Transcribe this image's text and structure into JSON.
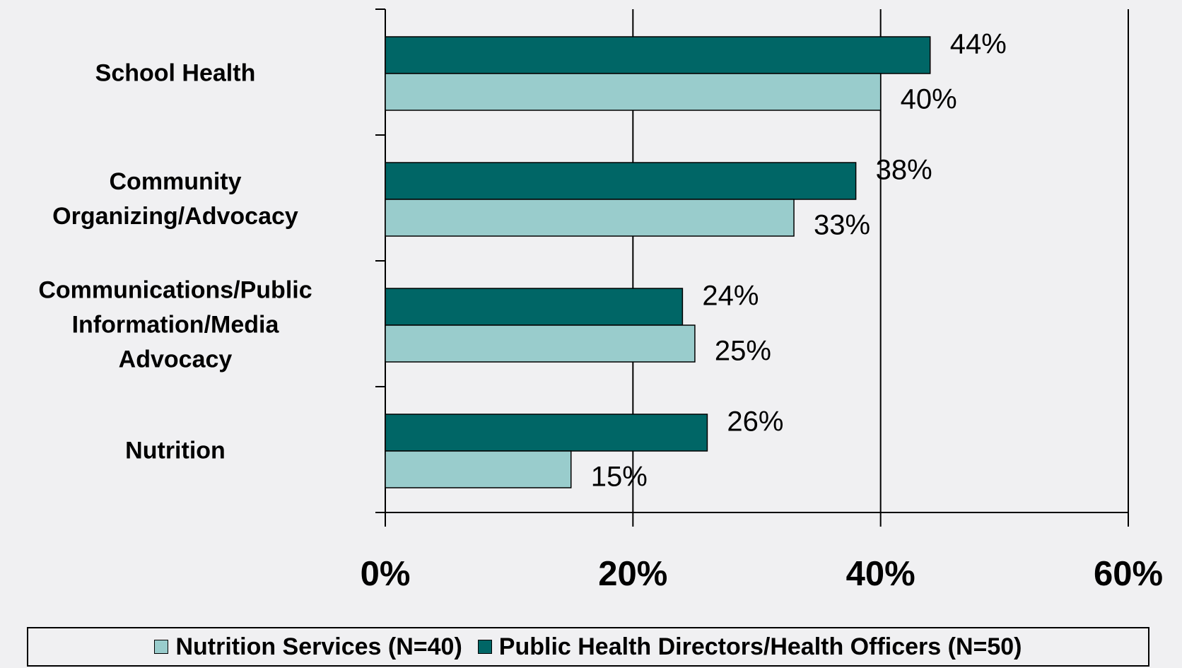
{
  "chart_data": {
    "type": "hbar",
    "categories": [
      "School Health",
      "Community\nOrganizing/Advocacy",
      "Communications/Public\nInformation/Media\nAdvocacy",
      "Nutrition"
    ],
    "series": [
      {
        "name": "Nutrition Services (N=40)",
        "color": "#99cccc",
        "values": [
          40,
          33,
          25,
          15
        ],
        "value_labels": [
          "40%",
          "33%",
          "25%",
          "15%"
        ]
      },
      {
        "name": "Public Health Directors/Health Officers (N=50)",
        "color": "#006666",
        "values": [
          44,
          38,
          24,
          26
        ],
        "value_labels": [
          "44%",
          "38%",
          "24%",
          "26%"
        ]
      }
    ],
    "xlim": [
      0,
      60
    ],
    "xticks": [
      {
        "value": 0,
        "label": "0%"
      },
      {
        "value": 20,
        "label": "20%"
      },
      {
        "value": 40,
        "label": "40%"
      },
      {
        "value": 60,
        "label": "60%"
      }
    ],
    "grid": true
  }
}
